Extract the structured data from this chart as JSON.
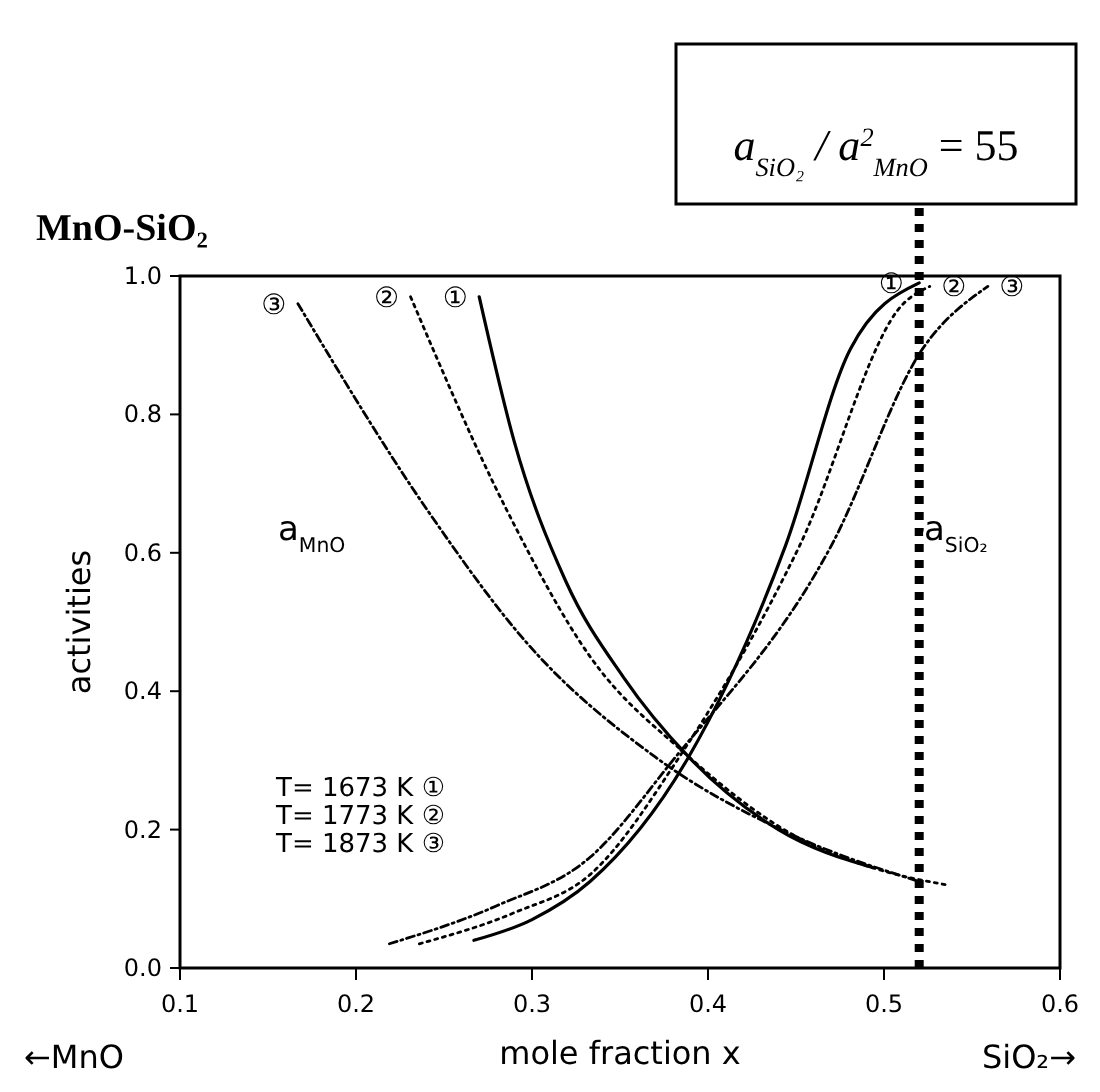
{
  "chart_data": {
    "type": "line",
    "title": "MnO-SiO₂",
    "xlabel": "mole fraction x",
    "ylabel": "activities",
    "xlim": [
      0.1,
      0.6
    ],
    "xticks": [
      0.1,
      0.2,
      0.3,
      0.4,
      0.5,
      0.6
    ],
    "ylim": [
      0,
      1
    ],
    "yticks": [
      {
        "value": 0,
        "label": "0.0"
      },
      0.2,
      0.4,
      0.6,
      0.8,
      {
        "value": 1,
        "label": "1.0"
      }
    ],
    "grid": false,
    "marker": "none",
    "series": [
      {
        "name": "①",
        "color": "#000000",
        "line_style": "solid",
        "x": [
          0.27,
          0.29,
          0.319,
          0.352,
          0.389,
          0.44,
          0.494
        ],
        "values": [
          0.97,
          0.76,
          0.56,
          0.42,
          0.305,
          0.2,
          0.145
        ]
      },
      {
        "name": "②",
        "color": "#000000",
        "line_style": "dotted",
        "x": [
          0.231,
          0.286,
          0.333,
          0.387,
          0.45,
          0.5,
          0.536
        ],
        "values": [
          0.97,
          0.66,
          0.45,
          0.31,
          0.19,
          0.14,
          0.12
        ]
      },
      {
        "name": "③",
        "color": "#000000",
        "line_style": "dashed",
        "x": [
          0.167,
          0.241,
          0.297,
          0.37,
          0.45,
          0.52
        ],
        "values": [
          0.96,
          0.66,
          0.47,
          0.305,
          0.19,
          0.125
        ]
      },
      {
        "name": "①",
        "color": "#000000",
        "line_style": "solid",
        "x": [
          0.267,
          0.3,
          0.333,
          0.389,
          0.444,
          0.481,
          0.52
        ],
        "values": [
          0.04,
          0.07,
          0.125,
          0.305,
          0.61,
          0.895,
          0.99
        ]
      },
      {
        "name": "②",
        "color": "#000000",
        "line_style": "dotted",
        "x": [
          0.236,
          0.29,
          0.333,
          0.385,
          0.452,
          0.511,
          0.526
        ],
        "values": [
          0.035,
          0.08,
          0.135,
          0.31,
          0.61,
          0.96,
          0.985
        ]
      },
      {
        "name": "③",
        "color": "#000000",
        "line_style": "dashed",
        "x": [
          0.219,
          0.28,
          0.333,
          0.38,
          0.47,
          0.522,
          0.559
        ],
        "values": [
          0.035,
          0.09,
          0.16,
          0.3,
          0.61,
          0.895,
          0.985
        ]
      }
    ],
    "ref_lines": [
      {
        "axis": "x",
        "value": 0.52,
        "line_style": "dotted",
        "color": "#000000"
      }
    ],
    "annotations": [
      "a$_{SiO₂}$ / a$^{2}$$_{MnO}$ = 55",
      "a$_{MnO}$",
      "a$_{SiO₂}$",
      "T= 1673 K ①",
      "T= 1773 K ②",
      "T= 1873 K ③",
      "←MnO",
      "SiO₂→"
    ]
  }
}
